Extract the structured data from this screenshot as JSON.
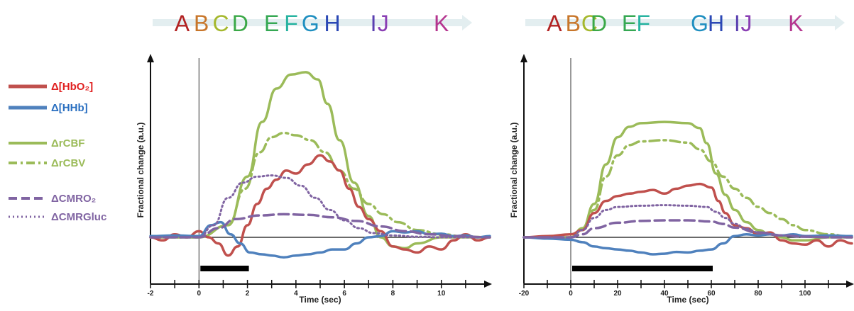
{
  "legend": [
    {
      "label": "Δ[HbO₂]",
      "color": "#c0504d",
      "dash": "solid"
    },
    {
      "label": "Δ[HHb]",
      "color": "#4f81bd",
      "dash": "solid"
    },
    {
      "label": "ΔrCBF",
      "color": "#9bbb59",
      "dash": "solid"
    },
    {
      "label": "ΔrCBV",
      "color": "#9bbb59",
      "dash": "dashdot"
    },
    {
      "label": "ΔCMRO₂",
      "color": "#8064a2",
      "dash": "dashed"
    },
    {
      "label": "ΔCMRGluc",
      "color": "#8064a2",
      "dash": "dotted"
    }
  ],
  "phase_colors": {
    "A": "#b22222",
    "B": "#c8762a",
    "C": "#a5b82d",
    "D": "#3aa847",
    "E": "#35a853",
    "F": "#27b3a0",
    "G": "#1f8fc0",
    "H": "#2b48b5",
    "I": "#5a3fb0",
    "J": "#8a3fb4",
    "K": "#b5358f"
  },
  "chart_data": [
    {
      "type": "line",
      "xlabel": "Time (sec)",
      "ylabel": "Fractional change (a.u.)",
      "xlim": [
        -2,
        12
      ],
      "ylim": [
        -0.7,
        2.8
      ],
      "xticks": [
        -2,
        0,
        2,
        4,
        6,
        8,
        10
      ],
      "stimulus": [
        0,
        2
      ],
      "phase_letters": [
        "A",
        "B",
        "C",
        "D",
        "E",
        "F",
        "G",
        "H",
        "I",
        "J",
        "K"
      ],
      "phase_positions": [
        -0.7,
        0.1,
        0.9,
        1.7,
        3.0,
        3.8,
        4.6,
        5.5,
        7.2,
        7.6,
        10.0
      ],
      "series": [
        {
          "name": "ΔrCBF",
          "color": "#9bbb59",
          "dash": "solid",
          "x": [
            -2,
            0,
            1.2,
            2.0,
            2.6,
            3.2,
            3.8,
            4.4,
            4.9,
            5.3,
            5.8,
            6.4,
            7.0,
            7.5,
            8.0,
            8.5,
            9.0,
            10,
            11,
            12
          ],
          "y": [
            0,
            0,
            0.2,
            1.0,
            1.9,
            2.45,
            2.68,
            2.72,
            2.6,
            2.2,
            1.6,
            0.9,
            0.35,
            0.0,
            -0.15,
            -0.18,
            -0.1,
            0,
            0,
            0
          ]
        },
        {
          "name": "ΔrCBV",
          "color": "#9bbb59",
          "dash": "dashdot",
          "x": [
            -2,
            0,
            1.2,
            1.9,
            2.5,
            3.0,
            3.5,
            4.0,
            4.6,
            5.2,
            5.8,
            6.4,
            7.0,
            7.6,
            8.2,
            9.0,
            10,
            11,
            12
          ],
          "y": [
            0,
            0,
            0.2,
            0.8,
            1.4,
            1.65,
            1.72,
            1.68,
            1.6,
            1.4,
            1.1,
            0.8,
            0.55,
            0.38,
            0.25,
            0.12,
            0.05,
            0.01,
            0
          ]
        },
        {
          "name": "Δ[HbO₂]",
          "color": "#c0504d",
          "dash": "solid",
          "x": [
            -2,
            -1.5,
            -1.0,
            -0.5,
            0,
            0.4,
            0.8,
            1.2,
            1.6,
            2.0,
            2.4,
            2.8,
            3.2,
            3.6,
            4.0,
            4.5,
            5.0,
            5.4,
            5.8,
            6.2,
            6.6,
            7.0,
            7.5,
            8.0,
            8.5,
            9.0,
            9.5,
            10,
            10.5,
            11,
            11.5,
            12
          ],
          "y": [
            0,
            -0.05,
            0.05,
            0,
            0.1,
            0,
            -0.1,
            -0.3,
            -0.15,
            0.2,
            0.55,
            0.8,
            0.95,
            1.1,
            1.05,
            1.2,
            1.35,
            1.25,
            1.1,
            0.8,
            0.5,
            0.3,
            0.1,
            -0.15,
            -0.2,
            -0.25,
            -0.15,
            -0.2,
            -0.05,
            0.05,
            -0.05,
            0
          ]
        },
        {
          "name": "Δ[HHb]",
          "color": "#4f81bd",
          "dash": "solid",
          "x": [
            -2,
            -1,
            0,
            0.5,
            0.9,
            1.3,
            1.7,
            2.1,
            2.6,
            3.0,
            3.5,
            4.0,
            4.5,
            5.0,
            5.5,
            6.0,
            6.5,
            7.0,
            7.5,
            8.0,
            8.5,
            9.0,
            9.5,
            10,
            10.5,
            11,
            11.5,
            12
          ],
          "y": [
            0.02,
            0.03,
            0.02,
            0.2,
            0.25,
            0.05,
            -0.1,
            -0.25,
            -0.28,
            -0.3,
            -0.33,
            -0.3,
            -0.28,
            -0.25,
            -0.2,
            -0.2,
            -0.1,
            0.0,
            0.02,
            0.1,
            0.08,
            0.1,
            0.05,
            0.06,
            0.02,
            0.03,
            0.0,
            0.02
          ]
        },
        {
          "name": "ΔCMRO₂",
          "color": "#8064a2",
          "dash": "dashed",
          "x": [
            -2,
            0,
            0.8,
            1.5,
            2.5,
            3.5,
            4.5,
            5.5,
            6.5,
            7.5,
            8.5,
            9.5,
            10.5,
            12
          ],
          "y": [
            0,
            0,
            0.15,
            0.3,
            0.36,
            0.38,
            0.37,
            0.33,
            0.27,
            0.18,
            0.1,
            0.05,
            0.02,
            0
          ]
        },
        {
          "name": "ΔCMRGluc",
          "color": "#8064a2",
          "dash": "dotted",
          "x": [
            -2,
            0,
            0.6,
            1.2,
            1.8,
            2.4,
            3.0,
            3.6,
            4.2,
            4.8,
            5.4,
            6.0,
            6.6,
            7.2,
            8.0,
            9.0,
            10,
            12
          ],
          "y": [
            0,
            0,
            0.2,
            0.65,
            0.9,
            1.0,
            1.02,
            0.98,
            0.85,
            0.65,
            0.45,
            0.28,
            0.15,
            0.07,
            0.03,
            0.01,
            0,
            0
          ]
        }
      ]
    },
    {
      "type": "line",
      "xlabel": "Time (sec)",
      "ylabel": "Fractional change (a.u.)",
      "xlim": [
        -20,
        120
      ],
      "ylim": [
        -0.7,
        2.8
      ],
      "xticks": [
        -20,
        0,
        20,
        40,
        60,
        80,
        100
      ],
      "stimulus": [
        0,
        60
      ],
      "phase_letters": [
        "A",
        "B",
        "C",
        "D",
        "E",
        "F",
        "G",
        "H",
        "I",
        "J",
        "K"
      ],
      "phase_positions": [
        -7,
        1,
        8,
        12,
        25,
        31,
        55,
        62,
        71,
        75,
        96
      ],
      "series": [
        {
          "name": "ΔrCBF",
          "color": "#9bbb59",
          "dash": "solid",
          "x": [
            -20,
            0,
            5,
            10,
            15,
            20,
            25,
            30,
            40,
            50,
            55,
            58,
            62,
            66,
            70,
            75,
            80,
            85,
            90,
            95,
            100,
            110,
            120
          ],
          "y": [
            0,
            0,
            0.15,
            0.55,
            1.2,
            1.65,
            1.82,
            1.88,
            1.9,
            1.88,
            1.8,
            1.55,
            1.05,
            0.7,
            0.45,
            0.25,
            0.12,
            0.05,
            0.0,
            -0.05,
            -0.05,
            0,
            0
          ]
        },
        {
          "name": "ΔrCBV",
          "color": "#9bbb59",
          "dash": "dashdot",
          "x": [
            -20,
            0,
            5,
            10,
            15,
            20,
            25,
            30,
            40,
            50,
            55,
            60,
            65,
            70,
            75,
            80,
            85,
            90,
            95,
            100,
            110,
            120
          ],
          "y": [
            0,
            0,
            0.12,
            0.45,
            1.0,
            1.35,
            1.52,
            1.58,
            1.6,
            1.56,
            1.45,
            1.25,
            1.0,
            0.8,
            0.65,
            0.5,
            0.4,
            0.3,
            0.2,
            0.12,
            0.05,
            0
          ]
        },
        {
          "name": "Δ[HbO₂]",
          "color": "#c0504d",
          "dash": "solid",
          "x": [
            -20,
            -10,
            0,
            5,
            10,
            15,
            20,
            25,
            30,
            35,
            40,
            45,
            50,
            55,
            60,
            63,
            66,
            70,
            75,
            80,
            85,
            90,
            95,
            100,
            105,
            110,
            115,
            120
          ],
          "y": [
            0,
            0.02,
            0.05,
            0.12,
            0.4,
            0.6,
            0.68,
            0.72,
            0.75,
            0.78,
            0.72,
            0.8,
            0.85,
            0.88,
            0.82,
            0.6,
            0.4,
            0.2,
            0.15,
            0.05,
            0.08,
            -0.05,
            -0.1,
            -0.12,
            -0.05,
            -0.15,
            -0.05,
            -0.1
          ]
        },
        {
          "name": "Δ[HHb]",
          "color": "#4f81bd",
          "dash": "solid",
          "x": [
            -20,
            -10,
            0,
            5,
            10,
            15,
            20,
            25,
            30,
            35,
            40,
            45,
            50,
            55,
            60,
            65,
            70,
            75,
            80,
            85,
            90,
            95,
            100,
            110,
            120
          ],
          "y": [
            0,
            -0.02,
            -0.04,
            -0.08,
            -0.15,
            -0.18,
            -0.2,
            -0.22,
            -0.25,
            -0.28,
            -0.27,
            -0.24,
            -0.25,
            -0.22,
            -0.2,
            -0.1,
            0.02,
            0.05,
            0.03,
            0.05,
            0.03,
            0.05,
            0.02,
            0.03,
            0.02
          ]
        },
        {
          "name": "ΔCMRO₂",
          "color": "#8064a2",
          "dash": "dashed",
          "x": [
            -20,
            0,
            5,
            10,
            20,
            30,
            40,
            50,
            60,
            65,
            70,
            80,
            90,
            100,
            110,
            120
          ],
          "y": [
            0,
            0,
            0.05,
            0.15,
            0.24,
            0.27,
            0.28,
            0.28,
            0.26,
            0.22,
            0.16,
            0.08,
            0.03,
            0.01,
            0,
            0
          ]
        },
        {
          "name": "ΔCMRGluc",
          "color": "#8064a2",
          "dash": "dotted",
          "x": [
            -20,
            0,
            5,
            10,
            15,
            20,
            30,
            40,
            50,
            58,
            62,
            66,
            70,
            75,
            80,
            90,
            100,
            110,
            120
          ],
          "y": [
            0,
            0,
            0.12,
            0.32,
            0.45,
            0.5,
            0.52,
            0.53,
            0.52,
            0.5,
            0.42,
            0.32,
            0.22,
            0.14,
            0.08,
            0.03,
            0.01,
            0,
            0
          ]
        }
      ]
    }
  ]
}
